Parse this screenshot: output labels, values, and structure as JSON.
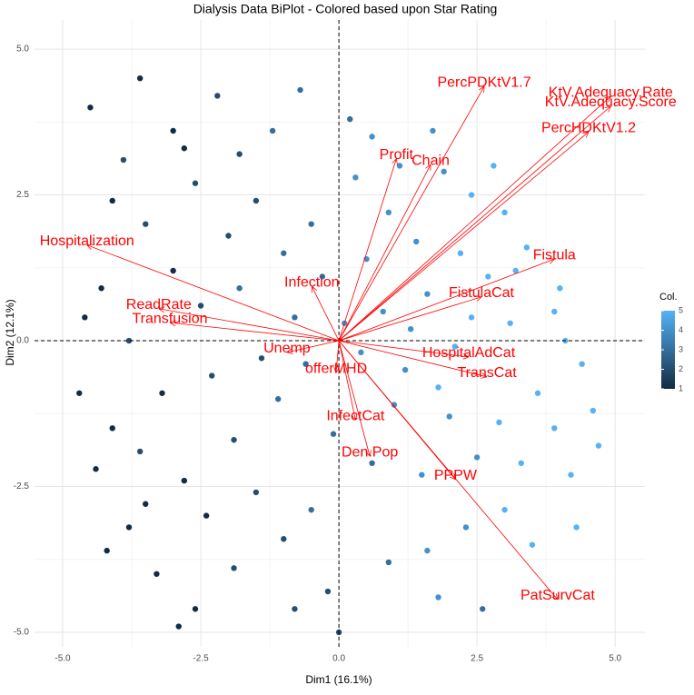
{
  "chart_data": {
    "type": "biplot",
    "title": "Dialysis Data BiPlot - Colored based upon Star Rating",
    "x_label": "Dim1 (16.1%)",
    "y_label": "Dim2 (12.1%)",
    "xlim": [
      -5.51,
      5.54
    ],
    "ylim": [
      -5.25,
      5.5
    ],
    "xticks": [
      {
        "value": -5,
        "label": "-5.0"
      },
      {
        "value": -2.5,
        "label": "-2.5"
      },
      {
        "value": 0,
        "label": "0.0"
      },
      {
        "value": 2.5,
        "label": "2.5"
      },
      {
        "value": 5,
        "label": "5.0"
      }
    ],
    "yticks": [
      {
        "value": -5,
        "label": "-5.0"
      },
      {
        "value": -2.5,
        "label": "-2.5"
      },
      {
        "value": 0,
        "label": "0.0"
      },
      {
        "value": 2.5,
        "label": "2.5"
      },
      {
        "value": 5,
        "label": "5.0"
      }
    ],
    "grid": true,
    "reference_lines": {
      "x": 0,
      "y": 0
    },
    "colorbar": {
      "title": "Col.",
      "ticks": [
        1,
        2,
        3,
        4,
        5
      ],
      "low": "#132B43",
      "high": "#56B1F7"
    },
    "points": {
      "x": [
        -4.5,
        -3.6,
        -3.0,
        -2.2,
        -3.9,
        -2.8,
        -4.1,
        -3.5,
        -2.6,
        -1.8,
        -1.2,
        -0.7,
        -1.5,
        -2.0,
        -3.0,
        -4.3,
        -4.6,
        -3.8,
        -2.5,
        -1.8,
        -1.0,
        -0.5,
        -0.8,
        -1.4,
        -2.3,
        -3.2,
        -4.1,
        -4.7,
        -4.4,
        -3.6,
        -2.8,
        -1.9,
        -1.1,
        -0.6,
        -1.5,
        -2.4,
        -3.5,
        -4.2,
        -3.3,
        -2.6,
        -1.9,
        -1.0,
        -0.5,
        -0.8,
        -0.2,
        0.0,
        -2.9,
        -3.8,
        -0.3,
        -0.1,
        0.3,
        0.6,
        0.9,
        1.4,
        1.9,
        2.4,
        3.0,
        3.4,
        2.7,
        1.6,
        0.8,
        0.4,
        1.2,
        2.1,
        3.1,
        3.9,
        4.1,
        4.4,
        3.6,
        2.9,
        2.0,
        1.0,
        0.6,
        1.5,
        2.5,
        3.3,
        4.2,
        4.7,
        3.9,
        3.0,
        2.3,
        1.6,
        0.9,
        1.8,
        2.6,
        4.3,
        3.5,
        4.6,
        4.0,
        3.2,
        2.2,
        1.1,
        0.2,
        1.7,
        2.8,
        0.5,
        1.3,
        0.1,
        2.4,
        1.8
      ],
      "y": [
        4.0,
        4.5,
        3.6,
        4.2,
        3.1,
        3.3,
        2.4,
        2.0,
        2.7,
        3.2,
        3.6,
        4.3,
        2.4,
        1.8,
        1.2,
        0.9,
        0.4,
        0.0,
        0.6,
        0.9,
        1.5,
        2.0,
        0.4,
        -0.3,
        -0.6,
        -0.9,
        -1.5,
        -0.9,
        -2.2,
        -1.9,
        -2.4,
        -1.7,
        -1.0,
        -0.4,
        -2.6,
        -3.0,
        -2.8,
        -3.6,
        -4.0,
        -4.6,
        -3.9,
        -3.4,
        -2.9,
        -4.6,
        -4.3,
        -5.0,
        -4.9,
        -3.2,
        1.1,
        -1.6,
        2.8,
        3.5,
        2.2,
        1.7,
        2.9,
        2.5,
        2.2,
        1.6,
        1.1,
        0.8,
        0.5,
        -0.2,
        -0.5,
        -0.1,
        0.3,
        0.5,
        0.0,
        -0.4,
        -0.9,
        -1.4,
        -1.3,
        -1.1,
        -2.1,
        -2.3,
        -2.0,
        -2.1,
        -2.3,
        -1.8,
        -1.5,
        -2.9,
        -3.2,
        -3.6,
        -3.8,
        -4.4,
        -4.6,
        -3.2,
        -3.5,
        -1.2,
        0.9,
        1.2,
        1.5,
        3.0,
        3.8,
        3.6,
        3.0,
        1.4,
        0.2,
        0.3,
        0.4,
        -0.8
      ],
      "color_value": [
        1,
        1,
        1,
        2,
        2,
        1,
        1,
        2,
        2,
        2,
        3,
        3,
        2,
        2,
        1,
        1,
        1,
        2,
        2,
        3,
        3,
        3,
        3,
        2,
        2,
        1,
        1,
        1,
        1,
        2,
        1,
        2,
        3,
        3,
        2,
        1,
        1,
        1,
        1,
        1,
        2,
        2,
        3,
        2,
        2,
        2,
        1,
        1,
        3,
        3,
        4,
        4,
        4,
        4,
        4,
        5,
        5,
        5,
        5,
        4,
        4,
        4,
        4,
        5,
        5,
        5,
        5,
        5,
        5,
        5,
        4,
        4,
        3,
        4,
        4,
        5,
        5,
        5,
        5,
        5,
        4,
        4,
        3,
        4,
        3,
        5,
        5,
        5,
        5,
        5,
        5,
        4,
        3,
        4,
        5,
        4,
        4,
        4,
        5,
        5
      ]
    },
    "arrow_color": "#ff0000",
    "arrows": [
      {
        "label": "PercPDKtV1.7",
        "x": 2.63,
        "y": 4.36
      },
      {
        "label": "KtV.Adequacy.Rate",
        "x": 4.92,
        "y": 4.19
      },
      {
        "label": "KtV.Adequacy.Score",
        "x": 4.92,
        "y": 4.02
      },
      {
        "label": "PercHDKtV1.2",
        "x": 4.52,
        "y": 3.58
      },
      {
        "label": "Profit",
        "x": 1.04,
        "y": 3.12
      },
      {
        "label": "Chain",
        "x": 1.66,
        "y": 3.02
      },
      {
        "label": "Fistula",
        "x": 3.9,
        "y": 1.4
      },
      {
        "label": "FistulaCat",
        "x": 2.58,
        "y": 0.75
      },
      {
        "label": "Hospitalization",
        "x": -4.56,
        "y": 1.64
      },
      {
        "label": "ReadRate",
        "x": -3.26,
        "y": 0.55
      },
      {
        "label": "Infection",
        "x": -0.49,
        "y": 0.93
      },
      {
        "label": "Transfusion",
        "x": -3.06,
        "y": 0.31
      },
      {
        "label": "Unemp",
        "x": -0.94,
        "y": -0.2
      },
      {
        "label": "HospitalAdCat",
        "x": 2.35,
        "y": -0.28
      },
      {
        "label": "TransCat",
        "x": 2.68,
        "y": -0.62
      },
      {
        "label": "offerMHD",
        "x": -0.05,
        "y": -0.55
      },
      {
        "label": "InfectCat",
        "x": 0.3,
        "y": -1.36
      },
      {
        "label": "Den.Pop",
        "x": 0.56,
        "y": -1.98
      },
      {
        "label": "PPPW",
        "x": 2.11,
        "y": -2.38
      },
      {
        "label": "PatSurvCat",
        "x": 3.96,
        "y": -4.44
      }
    ]
  }
}
